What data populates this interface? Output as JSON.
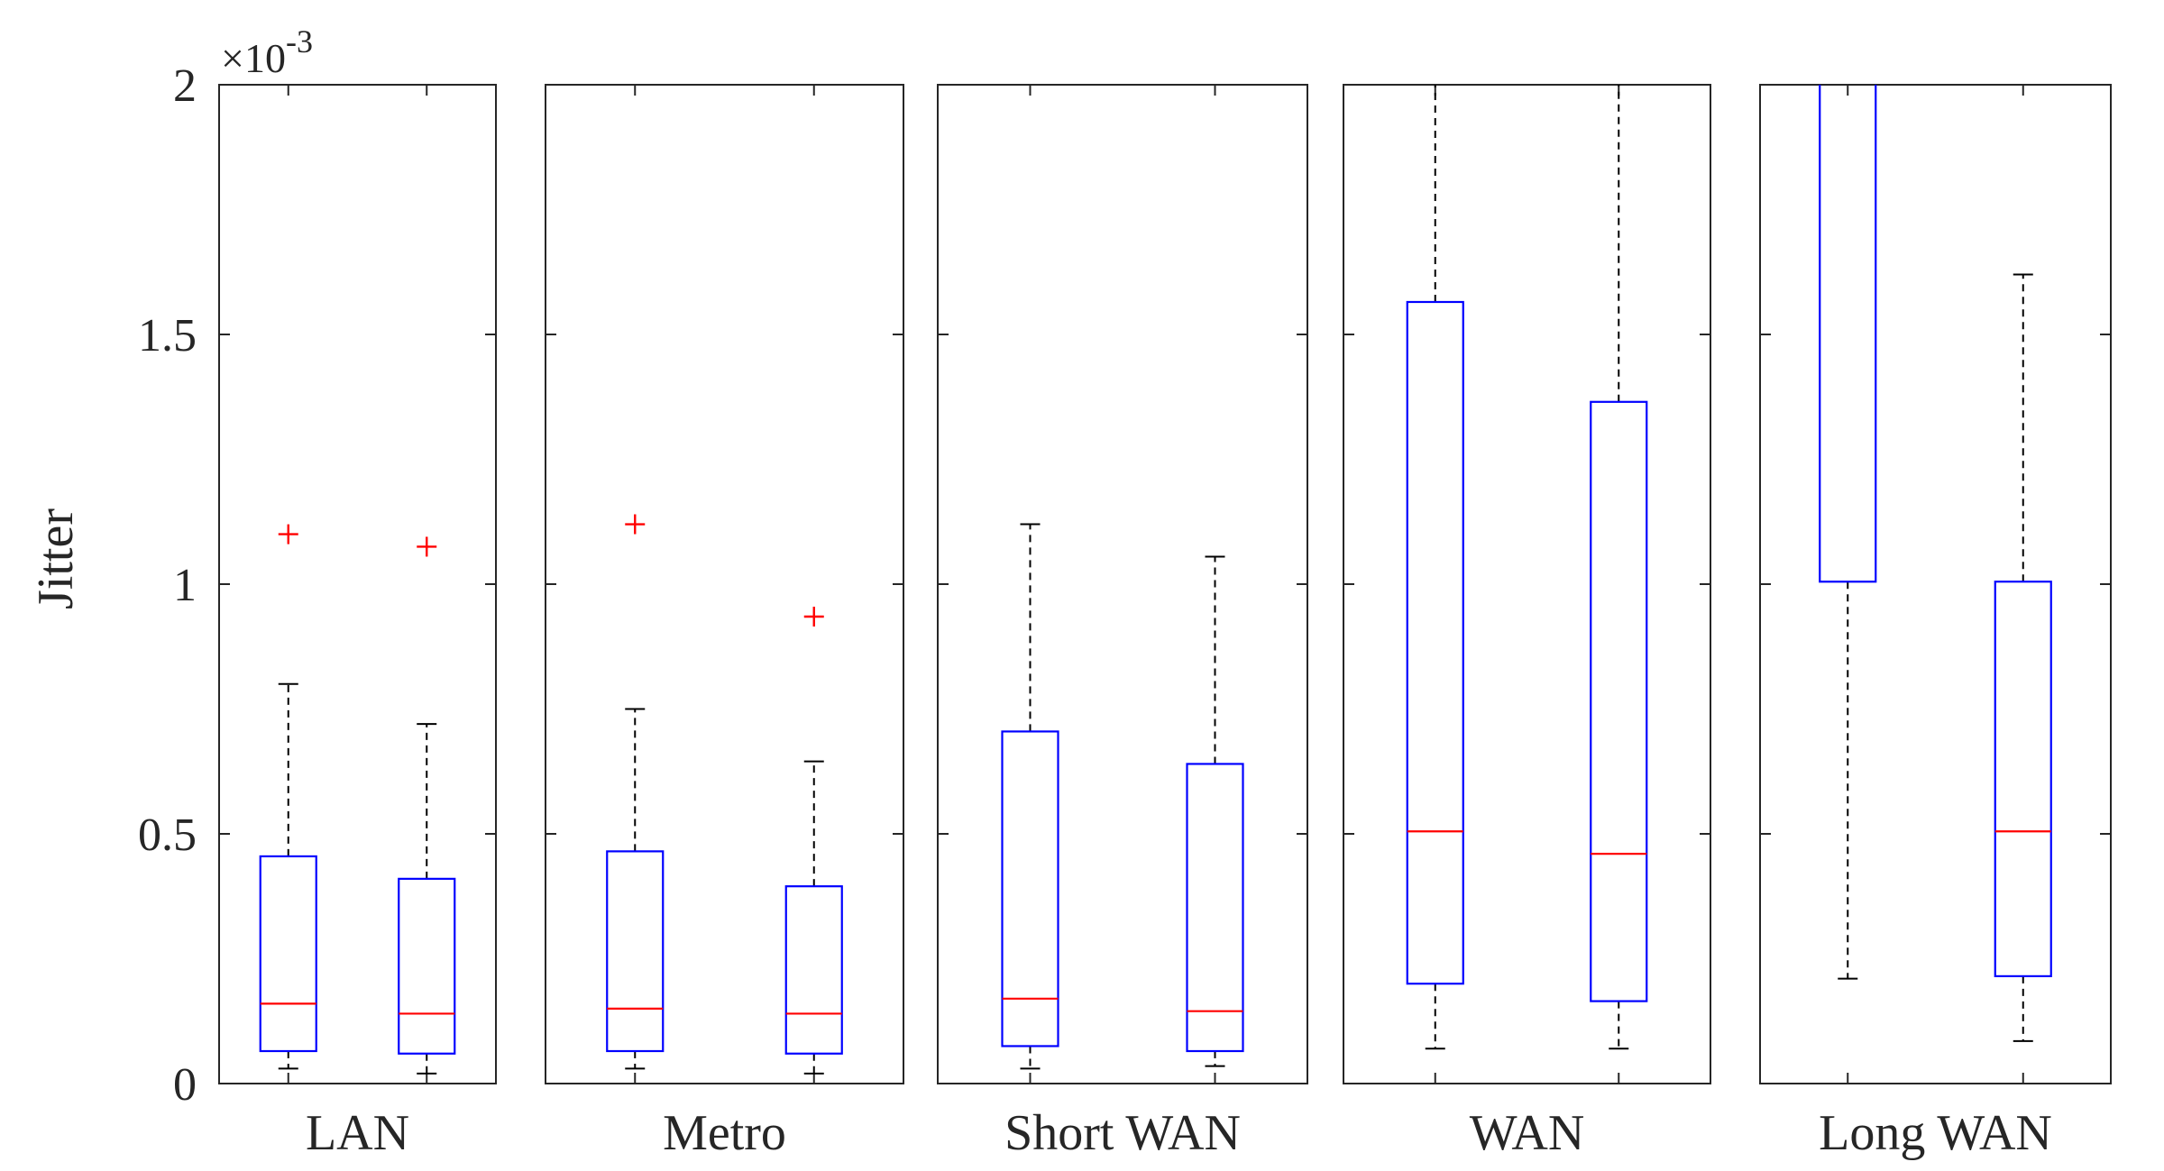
{
  "colors": {
    "box": "#0000ff",
    "median": "#ff0000",
    "outlier": "#ff0000",
    "whisker": "#000000",
    "axes": "#262626"
  },
  "chart_data": {
    "type": "box",
    "ylabel": "Jitter",
    "y_exponent_label": "×10",
    "y_exponent_power": "-3",
    "ylim": [
      0,
      2
    ],
    "yticks": [
      0,
      0.5,
      1,
      1.5,
      2
    ],
    "ytick_labels": [
      "0",
      "0.5",
      "1",
      "1.5",
      "2"
    ],
    "groups": [
      {
        "name": "LAN",
        "boxes": [
          {
            "whisker_low": 0.03,
            "q1": 0.065,
            "median": 0.16,
            "q3": 0.455,
            "whisker_high": 0.8,
            "outliers": [
              1.1
            ]
          },
          {
            "whisker_low": 0.02,
            "q1": 0.06,
            "median": 0.14,
            "q3": 0.41,
            "whisker_high": 0.72,
            "outliers": [
              1.075
            ]
          }
        ]
      },
      {
        "name": "Metro",
        "boxes": [
          {
            "whisker_low": 0.03,
            "q1": 0.065,
            "median": 0.15,
            "q3": 0.465,
            "whisker_high": 0.75,
            "outliers": [
              1.12
            ]
          },
          {
            "whisker_low": 0.02,
            "q1": 0.06,
            "median": 0.14,
            "q3": 0.395,
            "whisker_high": 0.645,
            "outliers": [
              0.935
            ]
          }
        ]
      },
      {
        "name": "Short WAN",
        "boxes": [
          {
            "whisker_low": 0.03,
            "q1": 0.075,
            "median": 0.17,
            "q3": 0.705,
            "whisker_high": 1.12,
            "outliers": []
          },
          {
            "whisker_low": 0.035,
            "q1": 0.065,
            "median": 0.145,
            "q3": 0.64,
            "whisker_high": 1.055,
            "outliers": []
          }
        ]
      },
      {
        "name": "WAN",
        "boxes": [
          {
            "whisker_low": 0.07,
            "q1": 0.2,
            "median": 0.505,
            "q3": 1.565,
            "whisker_high": 2.0,
            "outliers": []
          },
          {
            "whisker_low": 0.07,
            "q1": 0.165,
            "median": 0.46,
            "q3": 1.365,
            "whisker_high": 2.0,
            "outliers": []
          }
        ]
      },
      {
        "name": "Long WAN",
        "boxes": [
          {
            "whisker_low": 0.21,
            "q1": 1.005,
            "median": null,
            "q3": 2.0,
            "whisker_high": 2.0,
            "outliers": []
          },
          {
            "whisker_low": 0.085,
            "q1": 0.215,
            "median": 0.505,
            "q3": 1.005,
            "whisker_high": 1.62,
            "outliers": []
          }
        ]
      }
    ]
  }
}
